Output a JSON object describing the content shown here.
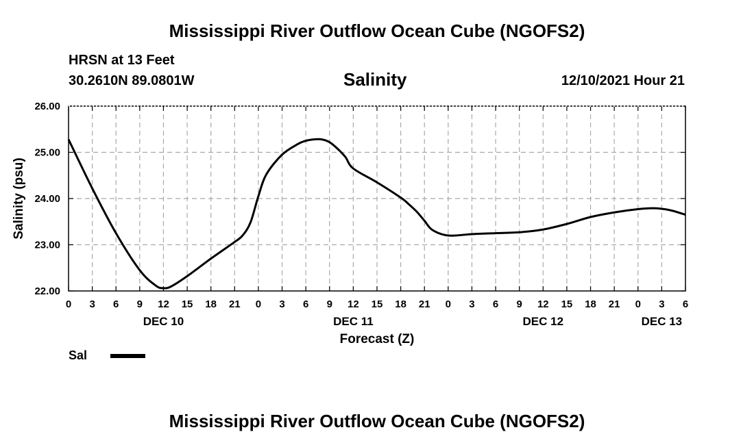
{
  "page": {
    "title_top": "Mississippi River Outflow Ocean Cube (NGOFS2)",
    "title_bottom": "Mississippi River Outflow Ocean Cube (NGOFS2)",
    "station": "HRSN at 13 Feet",
    "coords": "30.2610N  89.0801W",
    "plot_title": "Salinity",
    "run_time": "12/10/2021 Hour 21",
    "legend_label": "Sal"
  },
  "chart_data": {
    "type": "line",
    "title": "Salinity",
    "xlabel": "Forecast (Z)",
    "ylabel": "Salinity (psu)",
    "ylim": [
      22.0,
      26.0
    ],
    "xlim": [
      0,
      78
    ],
    "x_unit": "hours from Dec 10 00Z",
    "grid": true,
    "y_ticks": [
      "22.00",
      "23.00",
      "24.00",
      "25.00",
      "26.00"
    ],
    "y_tick_values": [
      22,
      23,
      24,
      25,
      26
    ],
    "x_tick_hours": [
      0,
      3,
      6,
      9,
      12,
      15,
      18,
      21,
      24,
      27,
      30,
      33,
      36,
      39,
      42,
      45,
      48,
      51,
      54,
      57,
      60,
      63,
      66,
      69,
      72,
      75,
      78
    ],
    "x_tick_labels": [
      "0",
      "3",
      "6",
      "9",
      "12",
      "15",
      "18",
      "21",
      "0",
      "3",
      "6",
      "9",
      "12",
      "15",
      "18",
      "21",
      "0",
      "3",
      "6",
      "9",
      "12",
      "15",
      "18",
      "21",
      "0",
      "3",
      "6"
    ],
    "day_labels": [
      {
        "label": "DEC 10",
        "hour": 12
      },
      {
        "label": "DEC 11",
        "hour": 36
      },
      {
        "label": "DEC 12",
        "hour": 60
      },
      {
        "label": "DEC 13",
        "hour": 75
      }
    ],
    "legend_position": "bottom-left",
    "series": [
      {
        "name": "Sal",
        "color": "#000000",
        "x": [
          0,
          3,
          6,
          9,
          11,
          12,
          13,
          15,
          18,
          21,
          22,
          23,
          24,
          25,
          27,
          29,
          30,
          31,
          32,
          33,
          34,
          35,
          36,
          39,
          42,
          43,
          44,
          45,
          46,
          48,
          51,
          54,
          57,
          60,
          63,
          66,
          69,
          72,
          74,
          76,
          78
        ],
        "values": [
          25.28,
          24.22,
          23.25,
          22.45,
          22.12,
          22.06,
          22.1,
          22.32,
          22.7,
          23.06,
          23.2,
          23.48,
          24.05,
          24.52,
          24.95,
          25.18,
          25.25,
          25.28,
          25.28,
          25.22,
          25.08,
          24.9,
          24.65,
          24.35,
          24.02,
          23.88,
          23.72,
          23.52,
          23.32,
          23.2,
          23.23,
          23.25,
          23.27,
          23.33,
          23.45,
          23.6,
          23.7,
          23.77,
          23.79,
          23.75,
          23.65
        ]
      }
    ]
  }
}
